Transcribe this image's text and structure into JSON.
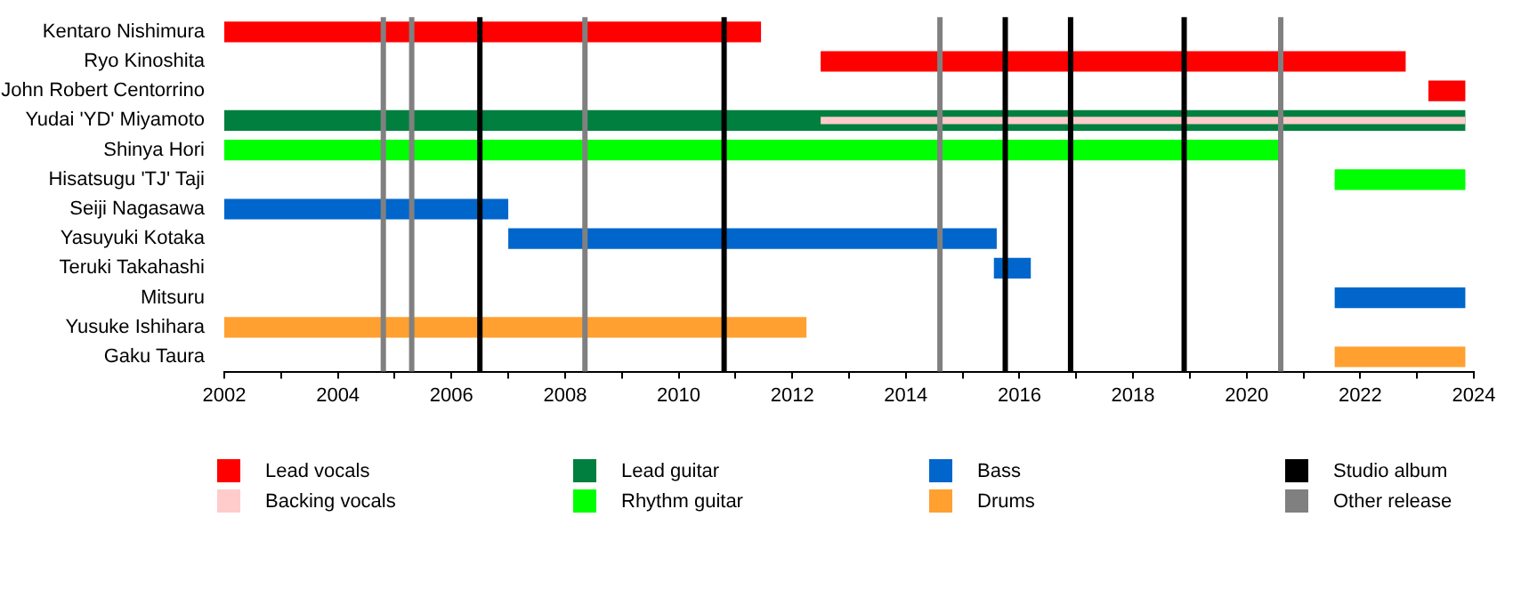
{
  "chart_data": {
    "type": "bar",
    "orientation": "horizontal",
    "categories": [
      "Kentaro Nishimura",
      "Ryo Kinoshita",
      "John Robert Centorrino",
      "Yudai 'YD' Miyamoto",
      "Shinya Hori",
      "Hisatsugu 'TJ' Taji",
      "Seiji Nagasawa",
      "Yasuyuki Kotaka",
      "Teruki Takahashi",
      "Mitsuru",
      "Yusuke Ishihara",
      "Gaku Taura"
    ],
    "series": [
      {
        "name": "Lead vocals",
        "color": "#ff0000",
        "base": [
          2002,
          2012.5,
          2023.2,
          null,
          null,
          null,
          null,
          null,
          null,
          null,
          null,
          null
        ],
        "values": [
          9.45,
          10.3,
          0.65,
          null,
          null,
          null,
          null,
          null,
          null,
          null,
          null,
          null
        ]
      },
      {
        "name": "Backing vocals",
        "color": "#ffcccc",
        "base": [
          null,
          null,
          null,
          2012.5,
          null,
          null,
          null,
          null,
          null,
          null,
          null,
          null
        ],
        "values": [
          null,
          null,
          null,
          11.35,
          null,
          null,
          null,
          null,
          null,
          null,
          null,
          null
        ]
      },
      {
        "name": "Lead guitar",
        "color": "#007f3f",
        "base": [
          null,
          null,
          null,
          2002,
          null,
          null,
          null,
          null,
          null,
          null,
          null,
          null
        ],
        "values": [
          null,
          null,
          null,
          21.85,
          null,
          null,
          null,
          null,
          null,
          null,
          null,
          null
        ]
      },
      {
        "name": "Rhythm guitar",
        "color": "#00ff00",
        "base": [
          null,
          null,
          null,
          null,
          2002,
          2021.55,
          null,
          null,
          null,
          null,
          null,
          null
        ],
        "values": [
          null,
          null,
          null,
          null,
          18.6,
          2.3,
          null,
          null,
          null,
          null,
          null,
          null
        ]
      },
      {
        "name": "Bass",
        "color": "#0066cc",
        "base": [
          null,
          null,
          null,
          null,
          null,
          null,
          2002,
          2007,
          2015.55,
          2021.55,
          null,
          null
        ],
        "values": [
          null,
          null,
          null,
          null,
          null,
          null,
          5,
          8.6,
          0.65,
          2.3,
          null,
          null
        ]
      },
      {
        "name": "Drums",
        "color": "#ffa030",
        "base": [
          null,
          null,
          null,
          null,
          null,
          null,
          null,
          null,
          null,
          null,
          2002,
          2021.55
        ],
        "values": [
          null,
          null,
          null,
          null,
          null,
          null,
          null,
          null,
          null,
          null,
          10.25,
          2.3
        ]
      }
    ],
    "xlim": [
      2002,
      2024
    ],
    "xticks": [
      2002,
      {
        "value": 2003,
        "label": null
      },
      2004,
      {
        "value": 2005,
        "label": null
      },
      2006,
      {
        "value": 2007,
        "label": null
      },
      2008,
      {
        "value": 2009,
        "label": null
      },
      2010,
      {
        "value": 2011,
        "label": null
      },
      2012,
      {
        "value": 2013,
        "label": null
      },
      2014,
      {
        "value": 2015,
        "label": null
      },
      2016,
      {
        "value": 2017,
        "label": null
      },
      2018,
      {
        "value": 2019,
        "label": null
      },
      2020,
      {
        "value": 2021,
        "label": null
      },
      2022,
      {
        "value": 2023,
        "label": null
      },
      2024
    ],
    "ref_lines": [
      {
        "axis": "x",
        "value": 2006.5,
        "label": "Studio album",
        "color": "#000000"
      },
      {
        "axis": "x",
        "value": 2010.8,
        "color": "#000000"
      },
      {
        "axis": "x",
        "value": 2015.75,
        "color": "#000000"
      },
      {
        "axis": "x",
        "value": 2016.9,
        "color": "#000000"
      },
      {
        "axis": "x",
        "value": 2018.9,
        "color": "#000000"
      },
      {
        "axis": "x",
        "value": 2004.8,
        "label": "Other release",
        "color": "#808080"
      },
      {
        "axis": "x",
        "value": 2005.3,
        "color": "#808080"
      },
      {
        "axis": "x",
        "value": 2008.35,
        "color": "#808080"
      },
      {
        "axis": "x",
        "value": 2014.6,
        "color": "#808080"
      },
      {
        "axis": "x",
        "value": 2020.6,
        "color": "#808080"
      }
    ],
    "grid": false,
    "legend": "bottom"
  }
}
